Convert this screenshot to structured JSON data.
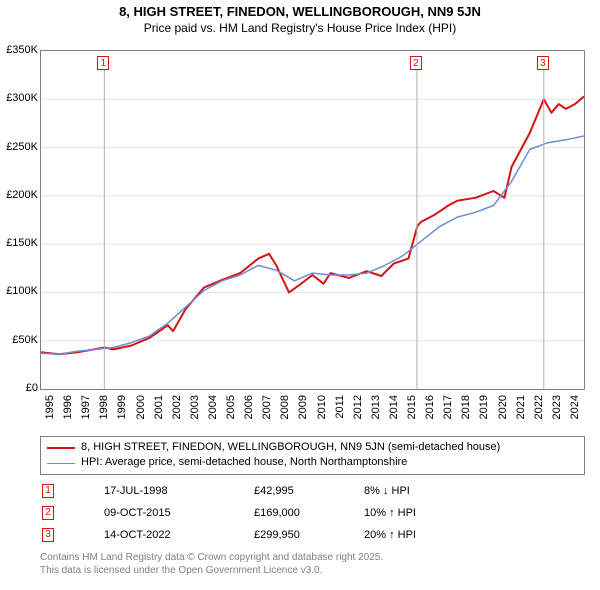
{
  "title_line1": "8, HIGH STREET, FINEDON, WELLINGBOROUGH, NN9 5JN",
  "title_line2": "Price paid vs. HM Land Registry's House Price Index (HPI)",
  "chart": {
    "type": "line",
    "background_color": "#ffffff",
    "grid_color": "#e4e4e4",
    "border_color": "#808080",
    "xlim": [
      1995,
      2025
    ],
    "ylim": [
      0,
      350000
    ],
    "ytick_step": 50000,
    "yticks": [
      {
        "v": 0,
        "label": "£0"
      },
      {
        "v": 50000,
        "label": "£50K"
      },
      {
        "v": 100000,
        "label": "£100K"
      },
      {
        "v": 150000,
        "label": "£150K"
      },
      {
        "v": 200000,
        "label": "£200K"
      },
      {
        "v": 250000,
        "label": "£250K"
      },
      {
        "v": 300000,
        "label": "£300K"
      },
      {
        "v": 350000,
        "label": "£350K"
      }
    ],
    "xticks": [
      1995,
      1996,
      1997,
      1998,
      1999,
      2000,
      2001,
      2002,
      2003,
      2004,
      2005,
      2006,
      2007,
      2008,
      2009,
      2010,
      2011,
      2012,
      2013,
      2014,
      2015,
      2016,
      2017,
      2018,
      2019,
      2020,
      2021,
      2022,
      2023,
      2024
    ],
    "series": [
      {
        "name": "price_paid",
        "color": "#d41313",
        "line_width": 2,
        "points": [
          [
            1995,
            38000
          ],
          [
            1996,
            36000
          ],
          [
            1997,
            38000
          ],
          [
            1998.5,
            42995
          ],
          [
            1999,
            41000
          ],
          [
            2000,
            45000
          ],
          [
            2001,
            53000
          ],
          [
            2002,
            66000
          ],
          [
            2002.3,
            60000
          ],
          [
            2003,
            83000
          ],
          [
            2004,
            105000
          ],
          [
            2005,
            113000
          ],
          [
            2006,
            120000
          ],
          [
            2007,
            135000
          ],
          [
            2007.6,
            140000
          ],
          [
            2008,
            128000
          ],
          [
            2008.7,
            100000
          ],
          [
            2009.3,
            108000
          ],
          [
            2010,
            118000
          ],
          [
            2010.6,
            109000
          ],
          [
            2011,
            120000
          ],
          [
            2012,
            115000
          ],
          [
            2013,
            122000
          ],
          [
            2013.8,
            117000
          ],
          [
            2014.5,
            130000
          ],
          [
            2015.3,
            135000
          ],
          [
            2015.8,
            169000
          ],
          [
            2016,
            173000
          ],
          [
            2016.8,
            181000
          ],
          [
            2017.5,
            190000
          ],
          [
            2018,
            195000
          ],
          [
            2019,
            198000
          ],
          [
            2020,
            205000
          ],
          [
            2020.6,
            198000
          ],
          [
            2021,
            230000
          ],
          [
            2022,
            265000
          ],
          [
            2022.78,
            299950
          ],
          [
            2023.2,
            286000
          ],
          [
            2023.6,
            295000
          ],
          [
            2024,
            290000
          ],
          [
            2024.5,
            295000
          ],
          [
            2025,
            303000
          ]
        ]
      },
      {
        "name": "hpi",
        "color": "#6a8fd8",
        "line_width": 1.5,
        "points": [
          [
            1995,
            37000
          ],
          [
            1996,
            36000
          ],
          [
            1997,
            39000
          ],
          [
            1998,
            41000
          ],
          [
            1999,
            43000
          ],
          [
            2000,
            48000
          ],
          [
            2001,
            55000
          ],
          [
            2002,
            68000
          ],
          [
            2003,
            85000
          ],
          [
            2004,
            102000
          ],
          [
            2005,
            112000
          ],
          [
            2006,
            118000
          ],
          [
            2007,
            128000
          ],
          [
            2008,
            123000
          ],
          [
            2009,
            112000
          ],
          [
            2010,
            120000
          ],
          [
            2011,
            118000
          ],
          [
            2012,
            118000
          ],
          [
            2013,
            120000
          ],
          [
            2014,
            128000
          ],
          [
            2015,
            138000
          ],
          [
            2016,
            153000
          ],
          [
            2017,
            168000
          ],
          [
            2018,
            178000
          ],
          [
            2019,
            183000
          ],
          [
            2020,
            190000
          ],
          [
            2021,
            215000
          ],
          [
            2022,
            248000
          ],
          [
            2023,
            255000
          ],
          [
            2024,
            258000
          ],
          [
            2025,
            262000
          ]
        ]
      }
    ],
    "markers": [
      {
        "n": "1",
        "x": 1998.5
      },
      {
        "n": "2",
        "x": 2015.77
      },
      {
        "n": "3",
        "x": 2022.78
      }
    ]
  },
  "legend": {
    "series1": {
      "color": "#d41313",
      "line_width": 2,
      "label": "8, HIGH STREET, FINEDON, WELLINGBOROUGH, NN9 5JN (semi-detached house)"
    },
    "series2": {
      "color": "#6a8fd8",
      "line_width": 1.5,
      "label": "HPI: Average price, semi-detached house, North Northamptonshire"
    }
  },
  "sales": [
    {
      "n": "1",
      "date": "17-JUL-1998",
      "price": "£42,995",
      "rel": "8% ↓ HPI"
    },
    {
      "n": "2",
      "date": "09-OCT-2015",
      "price": "£169,000",
      "rel": "10% ↑ HPI"
    },
    {
      "n": "3",
      "date": "14-OCT-2022",
      "price": "£299,950",
      "rel": "20% ↑ HPI"
    }
  ],
  "footer_line1": "Contains HM Land Registry data © Crown copyright and database right 2025.",
  "footer_line2": "This data is licensed under the Open Government Licence v3.0.",
  "colors": {
    "text": "#000000",
    "muted": "#808080",
    "accent": "#d41313",
    "hpi": "#6a8fd8"
  },
  "label_fontsize": 11,
  "title_fontsize": 13
}
